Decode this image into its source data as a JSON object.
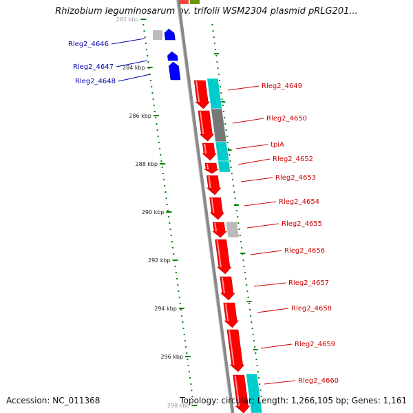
{
  "title": "Rhizobium leguminosarum bv. trifolii WSM2304 plasmid pRLG201...",
  "footer": {
    "accession": "Accession: NC_011368",
    "topology": "Topology: circular; Length: 1,266,105 bp; Genes: 1,161"
  },
  "colors": {
    "forward_cds": "#ff0000",
    "reverse_cds": "#0000ff",
    "cog_cyan": "#00cccc",
    "cog_gray": "#777777",
    "cog_light": "#bbbbbb",
    "cog_green": "#669900",
    "tick": "#008000",
    "backbone": "#888888",
    "label_forward": "#cc0000",
    "label_reverse": "#0000aa"
  },
  "scale_labels": [
    "282 kbp",
    "284 kbp",
    "286 kbp",
    "288 kbp",
    "290 kbp",
    "292 kbp",
    "294 kbp",
    "296 kbp",
    "298 kbp"
  ],
  "genes": [
    {
      "label": "Rleg2_4646",
      "strand": "reverse"
    },
    {
      "label": "Rleg2_4647",
      "strand": "reverse"
    },
    {
      "label": "Rleg2_4648",
      "strand": "reverse"
    },
    {
      "label": "Rleg2_4649",
      "strand": "forward"
    },
    {
      "label": "Rleg2_4650",
      "strand": "forward"
    },
    {
      "label": "tpiA",
      "strand": "forward"
    },
    {
      "label": "Rleg2_4652",
      "strand": "forward"
    },
    {
      "label": "Rleg2_4653",
      "strand": "forward"
    },
    {
      "label": "Rleg2_4654",
      "strand": "forward"
    },
    {
      "label": "Rleg2_4655",
      "strand": "forward"
    },
    {
      "label": "Rleg2_4656",
      "strand": "forward"
    },
    {
      "label": "Rleg2_4657",
      "strand": "forward"
    },
    {
      "label": "Rleg2_4658",
      "strand": "forward"
    },
    {
      "label": "Rleg2_4659",
      "strand": "forward"
    },
    {
      "label": "Rleg2_4660",
      "strand": "forward"
    }
  ]
}
